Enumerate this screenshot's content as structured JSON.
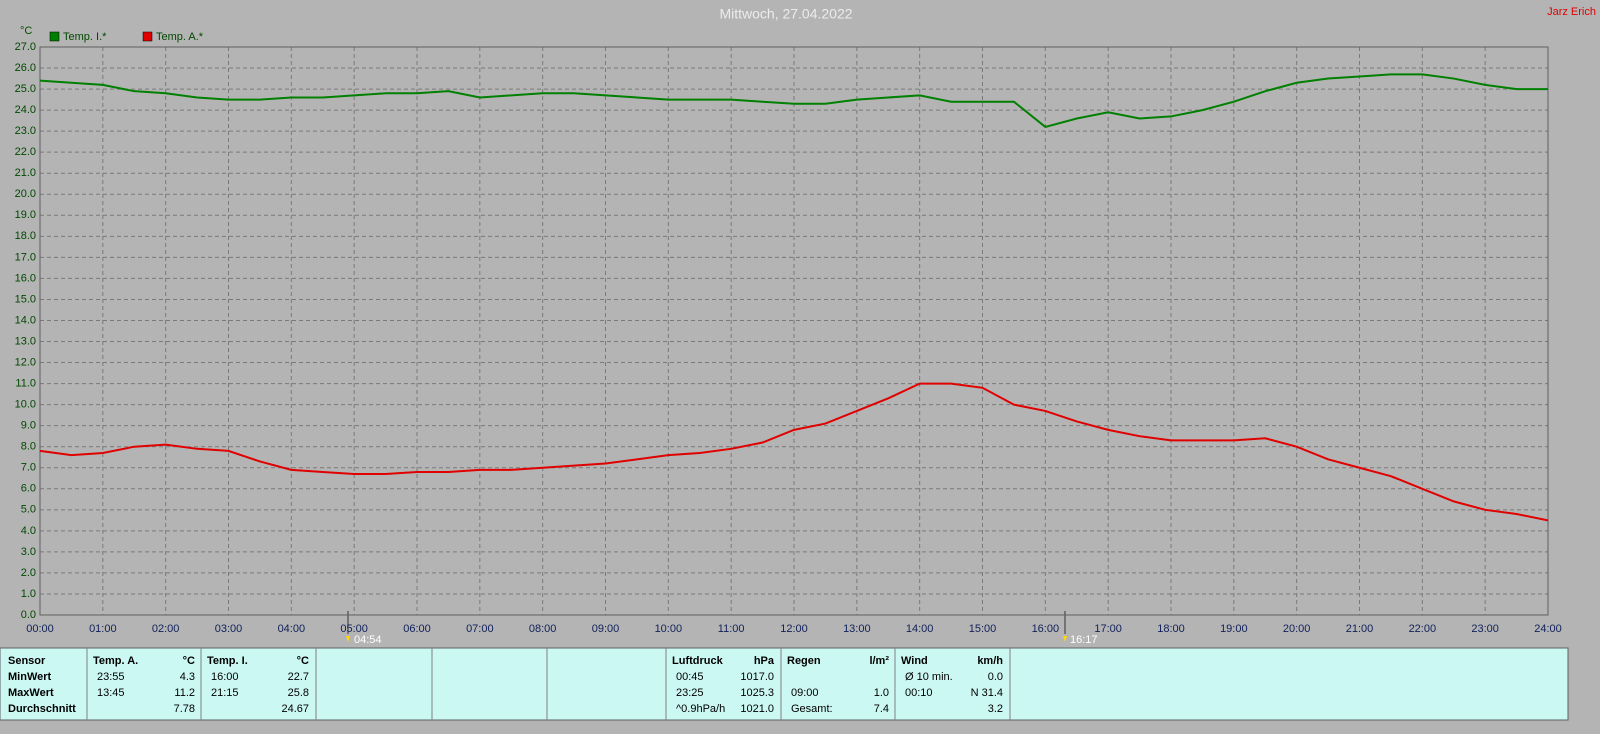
{
  "chart_data": {
    "type": "line",
    "title": "Mittwoch, 27.04.2022",
    "author": "Jarz Erich",
    "y_unit": "°C",
    "sunrise": "04:54",
    "sunset": "16:17",
    "grid": true,
    "legend": "top-left",
    "x": [
      0,
      0.5,
      1,
      1.5,
      2,
      2.5,
      3,
      3.5,
      4,
      4.5,
      5,
      5.5,
      6,
      6.5,
      7,
      7.5,
      8,
      8.5,
      9,
      9.5,
      10,
      10.5,
      11,
      11.5,
      12,
      12.5,
      13,
      13.5,
      14,
      14.5,
      15,
      15.5,
      16,
      16.5,
      17,
      17.5,
      18,
      18.5,
      19,
      19.5,
      20,
      20.5,
      21,
      21.5,
      22,
      22.5,
      23,
      23.5,
      24
    ],
    "xlim": [
      0,
      24
    ],
    "xticks": [
      {
        "value": 0,
        "label": "00:00"
      },
      {
        "value": 1,
        "label": "01:00"
      },
      {
        "value": 2,
        "label": "02:00"
      },
      {
        "value": 3,
        "label": "03:00"
      },
      {
        "value": 4,
        "label": "04:00"
      },
      {
        "value": 5,
        "label": "05:00"
      },
      {
        "value": 6,
        "label": "06:00"
      },
      {
        "value": 7,
        "label": "07:00"
      },
      {
        "value": 8,
        "label": "08:00"
      },
      {
        "value": 9,
        "label": "09:00"
      },
      {
        "value": 10,
        "label": "10:00"
      },
      {
        "value": 11,
        "label": "11:00"
      },
      {
        "value": 12,
        "label": "12:00"
      },
      {
        "value": 13,
        "label": "13:00"
      },
      {
        "value": 14,
        "label": "14:00"
      },
      {
        "value": 15,
        "label": "15:00"
      },
      {
        "value": 16,
        "label": "16:00"
      },
      {
        "value": 17,
        "label": "17:00"
      },
      {
        "value": 18,
        "label": "18:00"
      },
      {
        "value": 19,
        "label": "19:00"
      },
      {
        "value": 20,
        "label": "20:00"
      },
      {
        "value": 21,
        "label": "21:00"
      },
      {
        "value": 22,
        "label": "22:00"
      },
      {
        "value": 23,
        "label": "23:00"
      },
      {
        "value": 24,
        "label": "24:00"
      }
    ],
    "ylim": [
      0,
      27
    ],
    "yticks": [
      {
        "value": 0,
        "label": "0.0"
      },
      {
        "value": 1,
        "label": "1.0"
      },
      {
        "value": 2,
        "label": "2.0"
      },
      {
        "value": 3,
        "label": "3.0"
      },
      {
        "value": 4,
        "label": "4.0"
      },
      {
        "value": 5,
        "label": "5.0"
      },
      {
        "value": 6,
        "label": "6.0"
      },
      {
        "value": 7,
        "label": "7.0"
      },
      {
        "value": 8,
        "label": "8.0"
      },
      {
        "value": 9,
        "label": "9.0"
      },
      {
        "value": 10,
        "label": "10.0"
      },
      {
        "value": 11,
        "label": "11.0"
      },
      {
        "value": 12,
        "label": "12.0"
      },
      {
        "value": 13,
        "label": "13.0"
      },
      {
        "value": 14,
        "label": "14.0"
      },
      {
        "value": 15,
        "label": "15.0"
      },
      {
        "value": 16,
        "label": "16.0"
      },
      {
        "value": 17,
        "label": "17.0"
      },
      {
        "value": 18,
        "label": "18.0"
      },
      {
        "value": 19,
        "label": "19.0"
      },
      {
        "value": 20,
        "label": "20.0"
      },
      {
        "value": 21,
        "label": "21.0"
      },
      {
        "value": 22,
        "label": "22.0"
      },
      {
        "value": 23,
        "label": "23.0"
      },
      {
        "value": 24,
        "label": "24.0"
      },
      {
        "value": 25,
        "label": "25.0"
      },
      {
        "value": 26,
        "label": "26.0"
      },
      {
        "value": 27,
        "label": "27.0"
      }
    ],
    "series": [
      {
        "name": "Temp. I.*",
        "color": "#008000",
        "values": [
          25.4,
          25.3,
          25.2,
          24.9,
          24.8,
          24.6,
          24.5,
          24.5,
          24.6,
          24.6,
          24.7,
          24.8,
          24.8,
          24.9,
          24.6,
          24.7,
          24.8,
          24.8,
          24.7,
          24.6,
          24.5,
          24.5,
          24.5,
          24.4,
          24.3,
          24.3,
          24.5,
          24.6,
          24.7,
          24.4,
          24.4,
          24.4,
          23.2,
          23.6,
          23.9,
          23.6,
          23.7,
          24.0,
          24.4,
          24.9,
          25.3,
          25.5,
          25.6,
          25.7,
          25.7,
          25.5,
          25.2,
          25.0,
          25.0
        ]
      },
      {
        "name": "Temp. A.*",
        "color": "#e00000",
        "values": [
          7.8,
          7.6,
          7.7,
          8.0,
          8.1,
          7.9,
          7.8,
          7.3,
          6.9,
          6.8,
          6.7,
          6.7,
          6.8,
          6.8,
          6.9,
          6.9,
          7.0,
          7.1,
          7.2,
          7.4,
          7.6,
          7.7,
          7.9,
          8.2,
          8.8,
          9.1,
          9.7,
          10.3,
          11.0,
          11.0,
          10.8,
          10.0,
          9.7,
          9.2,
          8.8,
          8.5,
          8.3,
          8.3,
          8.3,
          8.4,
          8.0,
          7.4,
          7.0,
          6.6,
          6.0,
          5.4,
          5.0,
          4.8,
          4.5
        ]
      }
    ]
  },
  "table": {
    "row_labels": [
      "Sensor",
      "MinWert",
      "MaxWert",
      "Durchschnitt"
    ],
    "groups": [
      {
        "header": [
          "Temp. A.",
          "°C"
        ],
        "rows": [
          [
            "23:55",
            "4.3"
          ],
          [
            "13:45",
            "11.2"
          ],
          [
            null,
            "7.78"
          ]
        ]
      },
      {
        "header": [
          "Temp. I.",
          "°C"
        ],
        "rows": [
          [
            "16:00",
            "22.7"
          ],
          [
            "21:15",
            "25.8"
          ],
          [
            null,
            "24.67"
          ]
        ]
      },
      {
        "header": [
          "Luftdruck",
          "hPa"
        ],
        "rows": [
          [
            "00:45",
            "1017.0"
          ],
          [
            "23:25",
            "1025.3"
          ],
          [
            "^0.9hPa/h",
            "1021.0"
          ]
        ]
      },
      {
        "header": [
          "Regen",
          "l/m²"
        ],
        "rows": [
          [
            null,
            null
          ],
          [
            "09:00",
            "1.0"
          ],
          [
            "Gesamt:",
            "7.4"
          ]
        ]
      },
      {
        "header": [
          "Wind",
          "km/h"
        ],
        "rows": [
          [
            "Ø 10 min.",
            "0.0"
          ],
          [
            "00:10",
            "N 31.4"
          ],
          [
            null,
            "3.2"
          ]
        ]
      }
    ]
  }
}
